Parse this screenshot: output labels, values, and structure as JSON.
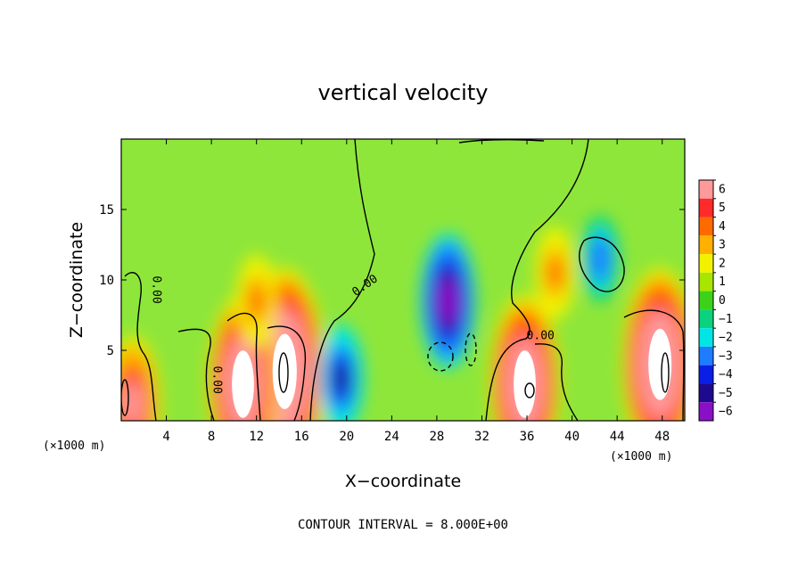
{
  "chart_data": {
    "type": "heatmap",
    "title": "vertical velocity",
    "xlabel": "X−coordinate",
    "ylabel": "Z−coordinate",
    "x_unit_left": "(×1000 m)",
    "x_unit_right": "(×1000 m)",
    "xlim": [
      0,
      50
    ],
    "ylim": [
      0,
      20
    ],
    "x_ticks": [
      4,
      8,
      12,
      16,
      20,
      24,
      28,
      32,
      36,
      40,
      44,
      48
    ],
    "x_tick_labels": [
      "4",
      "8",
      "12",
      "16",
      "20",
      "24",
      "28",
      "32",
      "36",
      "40",
      "44",
      "48"
    ],
    "y_ticks": [
      5,
      10,
      15
    ],
    "y_tick_labels": [
      "5",
      "10",
      "15"
    ],
    "contour_interval_text": "CONTOUR INTERVAL = 8.000E+00",
    "contour_labels": [
      {
        "text": "0.00",
        "x": 2.8,
        "z": 9.3,
        "angle": 90
      },
      {
        "text": "0.00",
        "x": 8.2,
        "z": 2.9,
        "angle": 90
      },
      {
        "text": "0.00",
        "x": 21.8,
        "z": 9.4,
        "angle": -35
      },
      {
        "text": "0.00",
        "x": 37.2,
        "z": 5.8,
        "angle": 0
      }
    ],
    "colorbar": {
      "levels": [
        "6",
        "5",
        "4",
        "3",
        "2",
        "1",
        "0",
        "−1",
        "−2",
        "−3",
        "−4",
        "−5",
        "−6"
      ],
      "colors": [
        "#ff9a9a",
        "#ff2a2a",
        "#ff6a00",
        "#ffb000",
        "#f2f200",
        "#a6e600",
        "#3cd21a",
        "#0ad27d",
        "#00e6e6",
        "#1e7dff",
        "#0a1ee6",
        "#1e0a8c",
        "#8a10c8"
      ]
    },
    "field_colors": {
      "background": "#8ee63a",
      "strong_positive": "#ffffff",
      "strong_negative": "#ffffff"
    },
    "features": [
      {
        "name": "updraft",
        "x": 14.5,
        "z": 3.5,
        "w": 11
      },
      {
        "name": "updraft",
        "x": 10.8,
        "z": 2.6,
        "w": 9
      },
      {
        "name": "updraft",
        "x": 35.8,
        "z": 2.6,
        "w": 9
      },
      {
        "name": "updraft",
        "x": 47.8,
        "z": 4.0,
        "w": 10
      },
      {
        "name": "updraft",
        "x": 12.0,
        "z": 8.5,
        "w": 3
      },
      {
        "name": "updraft",
        "x": 38.5,
        "z": 10.5,
        "w": 3
      },
      {
        "name": "updraft",
        "x": 1.0,
        "z": 1.2,
        "w": 6
      },
      {
        "name": "downdraft",
        "x": 29.0,
        "z": 8.5,
        "w": -6
      },
      {
        "name": "downdraft",
        "x": 19.5,
        "z": 3.0,
        "w": -4
      },
      {
        "name": "downdraft",
        "x": 42.5,
        "z": 11.5,
        "w": -2.5
      }
    ]
  }
}
